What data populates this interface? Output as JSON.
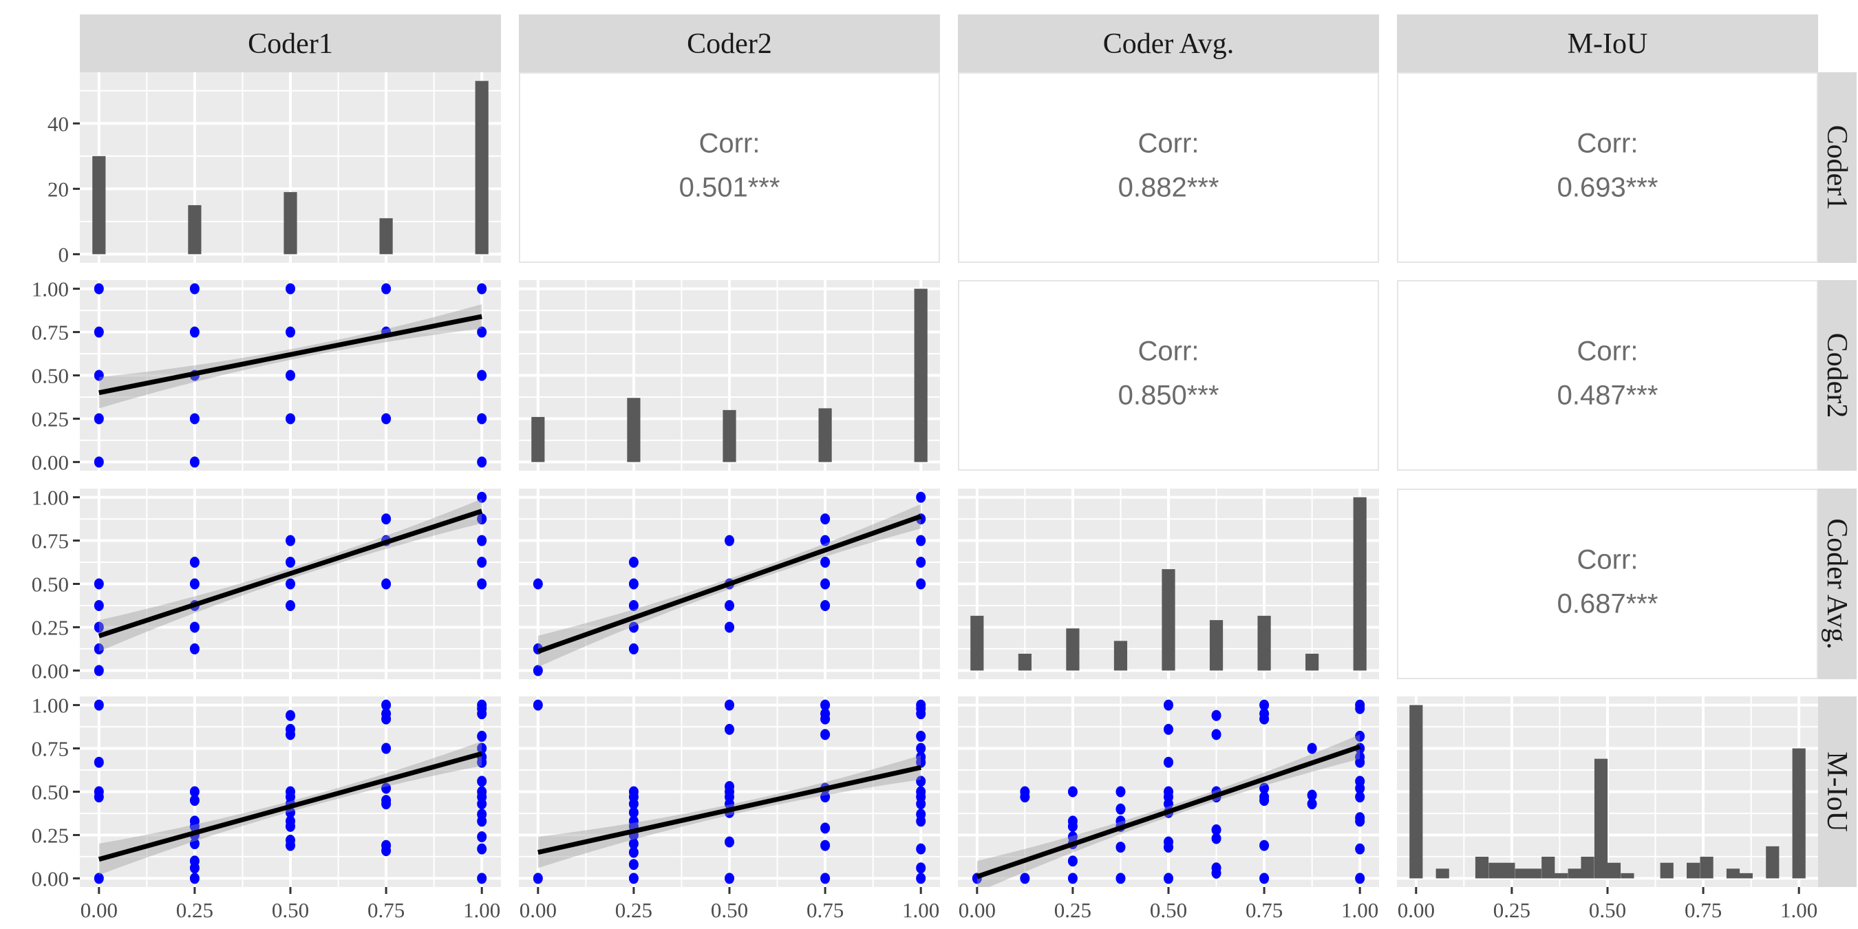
{
  "chart_data": {
    "type": "scatter-matrix",
    "variables": [
      "Coder1",
      "Coder2",
      "Coder Avg.",
      "M-IoU"
    ],
    "x_ticks": [
      "0.00",
      "0.25",
      "0.50",
      "0.75",
      "1.00"
    ],
    "x_tick_values": [
      0,
      0.25,
      0.5,
      0.75,
      1
    ],
    "count_ticks": [
      "0",
      "20",
      "40"
    ],
    "count_tick_values": [
      0,
      20,
      40
    ],
    "count_ylim": [
      0,
      53
    ],
    "y_ticks": [
      "0.00",
      "0.25",
      "0.50",
      "0.75",
      "1.00"
    ],
    "y_tick_values": [
      0,
      0.25,
      0.5,
      0.75,
      1
    ],
    "xlim": [
      0,
      1
    ],
    "ylim": [
      0,
      1
    ],
    "grid": true,
    "colors": {
      "panel_bg": "#EBEBEB",
      "strip_bg": "#D9D9D9",
      "bars": "#595959",
      "points": "#0000FF",
      "fit_line": "#000000",
      "band": "#999999",
      "corr_text": "#6B6B6B"
    },
    "diagonal": [
      {
        "variable": "Coder1",
        "type": "bar",
        "x": [
          0,
          0.25,
          0.5,
          0.75,
          1
        ],
        "values": [
          30,
          15,
          19,
          11,
          53
        ]
      },
      {
        "variable": "Coder2",
        "type": "bar",
        "x": [
          0,
          0.25,
          0.5,
          0.75,
          1
        ],
        "values": [
          0.26,
          0.37,
          0.3,
          0.31,
          1.0
        ]
      },
      {
        "variable": "Coder Avg.",
        "type": "bar",
        "x": [
          0,
          0.125,
          0.25,
          0.375,
          0.5,
          0.625,
          0.75,
          0.875,
          1
        ],
        "values": [
          0.316,
          0.097,
          0.243,
          0.171,
          0.585,
          0.291,
          0.316,
          0.097,
          1.0
        ]
      },
      {
        "variable": "M-IoU",
        "type": "histogram",
        "x": [
          0,
          0.069,
          0.172,
          0.207,
          0.241,
          0.276,
          0.31,
          0.345,
          0.379,
          0.414,
          0.448,
          0.483,
          0.517,
          0.552,
          0.655,
          0.724,
          0.759,
          0.828,
          0.862,
          0.931,
          1.0
        ],
        "values": [
          1.0,
          0.056,
          0.125,
          0.09,
          0.09,
          0.056,
          0.056,
          0.125,
          0.03,
          0.056,
          0.125,
          0.69,
          0.09,
          0.03,
          0.09,
          0.09,
          0.125,
          0.056,
          0.03,
          0.185,
          0.75
        ]
      }
    ],
    "upper": [
      {
        "row": 0,
        "col": 1,
        "label": "Corr:",
        "value": "0.501***"
      },
      {
        "row": 0,
        "col": 2,
        "label": "Corr:",
        "value": "0.882***"
      },
      {
        "row": 0,
        "col": 3,
        "label": "Corr:",
        "value": "0.693***"
      },
      {
        "row": 1,
        "col": 2,
        "label": "Corr:",
        "value": "0.850***"
      },
      {
        "row": 1,
        "col": 3,
        "label": "Corr:",
        "value": "0.487***"
      },
      {
        "row": 2,
        "col": 3,
        "label": "Corr:",
        "value": "0.687***"
      }
    ],
    "lower": [
      {
        "row": 1,
        "col": 0,
        "x_var": "Coder1",
        "y_var": "Coder2",
        "fit": [
          0.4,
          0.84
        ],
        "points": [
          [
            0,
            1
          ],
          [
            0,
            0.75
          ],
          [
            0,
            0.5
          ],
          [
            0,
            0.25
          ],
          [
            0,
            0
          ],
          [
            0.25,
            1
          ],
          [
            0.25,
            0.75
          ],
          [
            0.25,
            0.5
          ],
          [
            0.25,
            0.25
          ],
          [
            0.25,
            0
          ],
          [
            0.5,
            1
          ],
          [
            0.5,
            0.75
          ],
          [
            0.5,
            0.5
          ],
          [
            0.5,
            0.25
          ],
          [
            0.75,
            1
          ],
          [
            0.75,
            0.75
          ],
          [
            0.75,
            0.25
          ],
          [
            1,
            1
          ],
          [
            1,
            0.75
          ],
          [
            1,
            0.5
          ],
          [
            1,
            0.25
          ],
          [
            1,
            0
          ]
        ]
      },
      {
        "row": 2,
        "col": 0,
        "x_var": "Coder1",
        "y_var": "Coder Avg.",
        "fit": [
          0.2,
          0.92
        ],
        "points": [
          [
            0,
            0.5
          ],
          [
            0,
            0.375
          ],
          [
            0,
            0.25
          ],
          [
            0,
            0.125
          ],
          [
            0,
            0
          ],
          [
            0.25,
            0.625
          ],
          [
            0.25,
            0.5
          ],
          [
            0.25,
            0.375
          ],
          [
            0.25,
            0.25
          ],
          [
            0.25,
            0.125
          ],
          [
            0.5,
            0.75
          ],
          [
            0.5,
            0.625
          ],
          [
            0.5,
            0.5
          ],
          [
            0.5,
            0.375
          ],
          [
            0.75,
            0.875
          ],
          [
            0.75,
            0.75
          ],
          [
            0.75,
            0.5
          ],
          [
            1,
            1
          ],
          [
            1,
            0.875
          ],
          [
            1,
            0.75
          ],
          [
            1,
            0.625
          ],
          [
            1,
            0.5
          ]
        ]
      },
      {
        "row": 2,
        "col": 1,
        "x_var": "Coder2",
        "y_var": "Coder Avg.",
        "fit": [
          0.11,
          0.89
        ],
        "points": [
          [
            0,
            0.5
          ],
          [
            0,
            0.125
          ],
          [
            0,
            0
          ],
          [
            0.25,
            0.625
          ],
          [
            0.25,
            0.5
          ],
          [
            0.25,
            0.375
          ],
          [
            0.25,
            0.25
          ],
          [
            0.25,
            0.125
          ],
          [
            0.5,
            0.75
          ],
          [
            0.5,
            0.5
          ],
          [
            0.5,
            0.375
          ],
          [
            0.5,
            0.25
          ],
          [
            0.75,
            0.875
          ],
          [
            0.75,
            0.75
          ],
          [
            0.75,
            0.625
          ],
          [
            0.75,
            0.5
          ],
          [
            0.75,
            0.375
          ],
          [
            1,
            1
          ],
          [
            1,
            0.875
          ],
          [
            1,
            0.75
          ],
          [
            1,
            0.625
          ],
          [
            1,
            0.5
          ]
        ]
      },
      {
        "row": 3,
        "col": 0,
        "x_var": "Coder1",
        "y_var": "M-IoU",
        "fit": [
          0.11,
          0.72
        ],
        "points": [
          [
            0,
            1
          ],
          [
            0,
            0.67
          ],
          [
            0,
            0.5
          ],
          [
            0,
            0.47
          ],
          [
            0,
            0
          ],
          [
            0.25,
            0.5
          ],
          [
            0.25,
            0.45
          ],
          [
            0.25,
            0.33
          ],
          [
            0.25,
            0.3
          ],
          [
            0.25,
            0.25
          ],
          [
            0.25,
            0.2
          ],
          [
            0.25,
            0.1
          ],
          [
            0.25,
            0.06
          ],
          [
            0.25,
            0
          ],
          [
            0.5,
            0.94
          ],
          [
            0.5,
            0.86
          ],
          [
            0.5,
            0.83
          ],
          [
            0.5,
            0.5
          ],
          [
            0.5,
            0.47
          ],
          [
            0.5,
            0.43
          ],
          [
            0.5,
            0.38
          ],
          [
            0.5,
            0.33
          ],
          [
            0.5,
            0.3
          ],
          [
            0.5,
            0.22
          ],
          [
            0.5,
            0.19
          ],
          [
            0.75,
            1
          ],
          [
            0.75,
            0.95
          ],
          [
            0.75,
            0.92
          ],
          [
            0.75,
            0.75
          ],
          [
            0.75,
            0.52
          ],
          [
            0.75,
            0.45
          ],
          [
            0.75,
            0.43
          ],
          [
            0.75,
            0.19
          ],
          [
            0.75,
            0.16
          ],
          [
            1,
            1
          ],
          [
            1,
            0.98
          ],
          [
            1,
            0.95
          ],
          [
            1,
            0.82
          ],
          [
            1,
            0.75
          ],
          [
            1,
            0.7
          ],
          [
            1,
            0.67
          ],
          [
            1,
            0.56
          ],
          [
            1,
            0.5
          ],
          [
            1,
            0.47
          ],
          [
            1,
            0.43
          ],
          [
            1,
            0.37
          ],
          [
            1,
            0.33
          ],
          [
            1,
            0.24
          ],
          [
            1,
            0.17
          ],
          [
            1,
            0
          ]
        ]
      },
      {
        "row": 3,
        "col": 1,
        "x_var": "Coder2",
        "y_var": "M-IoU",
        "fit": [
          0.15,
          0.64
        ],
        "points": [
          [
            0,
            1
          ],
          [
            0,
            0
          ],
          [
            0.25,
            0.5
          ],
          [
            0.25,
            0.47
          ],
          [
            0.25,
            0.43
          ],
          [
            0.25,
            0.38
          ],
          [
            0.25,
            0.33
          ],
          [
            0.25,
            0.3
          ],
          [
            0.25,
            0.25
          ],
          [
            0.25,
            0.2
          ],
          [
            0.25,
            0.15
          ],
          [
            0.25,
            0.08
          ],
          [
            0.25,
            0
          ],
          [
            0.5,
            1
          ],
          [
            0.5,
            0.86
          ],
          [
            0.5,
            0.53
          ],
          [
            0.5,
            0.5
          ],
          [
            0.5,
            0.47
          ],
          [
            0.5,
            0.43
          ],
          [
            0.5,
            0.38
          ],
          [
            0.5,
            0.21
          ],
          [
            0.5,
            0
          ],
          [
            0.75,
            1
          ],
          [
            0.75,
            0.95
          ],
          [
            0.75,
            0.92
          ],
          [
            0.75,
            0.83
          ],
          [
            0.75,
            0.52
          ],
          [
            0.75,
            0.47
          ],
          [
            0.75,
            0.29
          ],
          [
            0.75,
            0.19
          ],
          [
            0.75,
            0
          ],
          [
            1,
            1
          ],
          [
            1,
            0.98
          ],
          [
            1,
            0.95
          ],
          [
            1,
            0.82
          ],
          [
            1,
            0.75
          ],
          [
            1,
            0.7
          ],
          [
            1,
            0.67
          ],
          [
            1,
            0.56
          ],
          [
            1,
            0.5
          ],
          [
            1,
            0.47
          ],
          [
            1,
            0.43
          ],
          [
            1,
            0.37
          ],
          [
            1,
            0.33
          ],
          [
            1,
            0.17
          ],
          [
            1,
            0.06
          ],
          [
            1,
            0
          ]
        ]
      },
      {
        "row": 3,
        "col": 2,
        "x_var": "Coder Avg.",
        "y_var": "M-IoU",
        "fit": [
          0.01,
          0.76
        ],
        "points": [
          [
            0,
            0
          ],
          [
            0.125,
            0.5
          ],
          [
            0.125,
            0.47
          ],
          [
            0.125,
            0
          ],
          [
            0.25,
            0.5
          ],
          [
            0.25,
            0.33
          ],
          [
            0.25,
            0.3
          ],
          [
            0.25,
            0.24
          ],
          [
            0.25,
            0.2
          ],
          [
            0.25,
            0.1
          ],
          [
            0.25,
            0
          ],
          [
            0.375,
            0.5
          ],
          [
            0.375,
            0.4
          ],
          [
            0.375,
            0.33
          ],
          [
            0.375,
            0.3
          ],
          [
            0.375,
            0.18
          ],
          [
            0.375,
            0
          ],
          [
            0.5,
            1
          ],
          [
            0.5,
            0.86
          ],
          [
            0.5,
            0.67
          ],
          [
            0.5,
            0.5
          ],
          [
            0.5,
            0.47
          ],
          [
            0.5,
            0.43
          ],
          [
            0.5,
            0.38
          ],
          [
            0.5,
            0.21
          ],
          [
            0.5,
            0.18
          ],
          [
            0.5,
            0
          ],
          [
            0.625,
            0.94
          ],
          [
            0.625,
            0.83
          ],
          [
            0.625,
            0.5
          ],
          [
            0.625,
            0.47
          ],
          [
            0.625,
            0.28
          ],
          [
            0.625,
            0.23
          ],
          [
            0.625,
            0.06
          ],
          [
            0.625,
            0.03
          ],
          [
            0.75,
            1
          ],
          [
            0.75,
            0.95
          ],
          [
            0.75,
            0.92
          ],
          [
            0.75,
            0.52
          ],
          [
            0.75,
            0.47
          ],
          [
            0.75,
            0.45
          ],
          [
            0.75,
            0.19
          ],
          [
            0.75,
            0
          ],
          [
            0.875,
            0.75
          ],
          [
            0.875,
            0.48
          ],
          [
            0.875,
            0.43
          ],
          [
            1,
            1
          ],
          [
            1,
            0.98
          ],
          [
            1,
            0.82
          ],
          [
            1,
            0.75
          ],
          [
            1,
            0.7
          ],
          [
            1,
            0.67
          ],
          [
            1,
            0.56
          ],
          [
            1,
            0.52
          ],
          [
            1,
            0.47
          ],
          [
            1,
            0.35
          ],
          [
            1,
            0.33
          ],
          [
            1,
            0.17
          ],
          [
            1,
            0
          ]
        ]
      }
    ]
  }
}
